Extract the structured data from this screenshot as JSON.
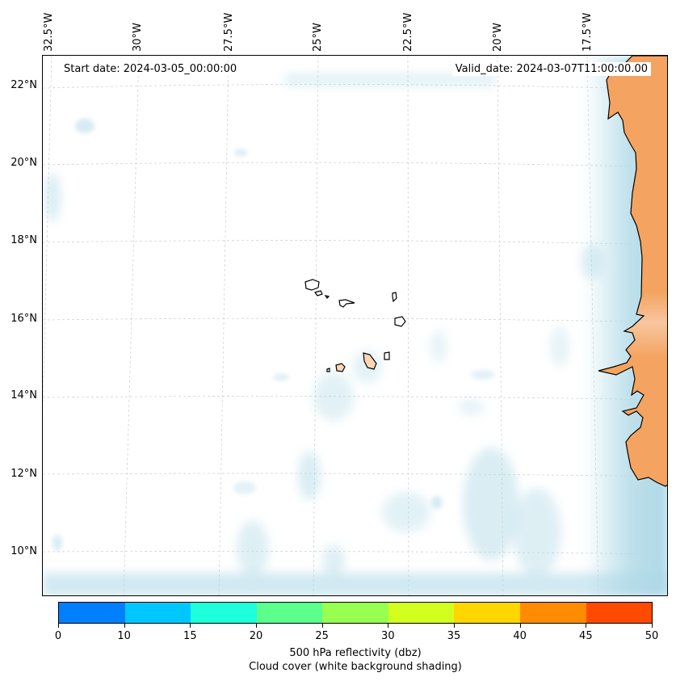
{
  "lon_labels": [
    "32.5°W",
    "30°W",
    "27.5°W",
    "25°W",
    "22.5°W",
    "20°W",
    "17.5°W"
  ],
  "lat_labels": [
    "22°N",
    "20°N",
    "18°N",
    "16°N",
    "14°N",
    "12°N",
    "10°N"
  ],
  "start_date": "Start date: 2024-03-05_00:00:00",
  "valid_date": "Valid_date: 2024-03-07T11:00:00.00",
  "colorbar": {
    "ticks": [
      "0",
      "10",
      "15",
      "20",
      "25",
      "30",
      "35",
      "40",
      "45",
      "50"
    ],
    "colors": [
      "#0080ff",
      "#00c8ff",
      "#1effdc",
      "#5aff8c",
      "#96ff50",
      "#d2ff1e",
      "#ffd600",
      "#ff8c00",
      "#ff4a00"
    ],
    "title_line1": "500 hPa reflectivity (dbz)",
    "title_line2": "Cloud cover (white background shading)"
  },
  "colors": {
    "land": "#f4a460",
    "cloud": "#add8e6",
    "island": "#fcd5b4"
  }
}
